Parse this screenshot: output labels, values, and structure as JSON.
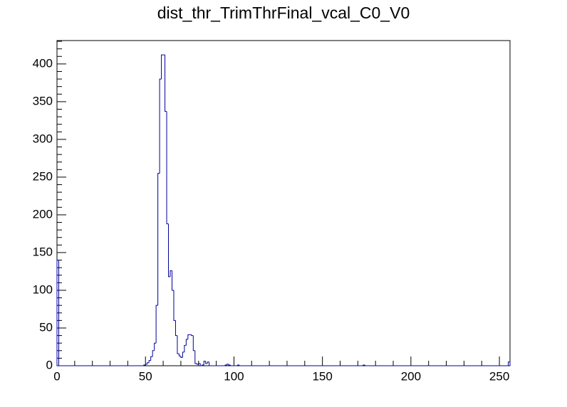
{
  "chart_data": {
    "type": "histogram",
    "title": "dist_thr_TrimThrFinal_vcal_C0_V0",
    "color": "#000099",
    "bins": [
      0,
      1,
      2,
      3,
      4,
      5,
      6,
      7,
      8,
      9,
      10,
      11,
      12,
      13,
      14,
      15,
      16,
      17,
      18,
      19,
      20,
      21,
      22,
      23,
      24,
      25,
      26,
      27,
      28,
      29,
      30,
      31,
      32,
      33,
      34,
      35,
      36,
      37,
      38,
      39,
      40,
      41,
      42,
      43,
      44,
      45,
      46,
      47,
      48,
      49,
      50,
      51,
      52,
      53,
      54,
      55,
      56,
      57,
      58,
      59,
      60,
      61,
      62,
      63,
      64,
      65,
      66,
      67,
      68,
      69,
      70,
      71,
      72,
      73,
      74,
      75,
      76,
      77,
      78,
      79,
      80,
      81,
      82,
      83,
      84,
      85,
      86,
      87,
      88,
      89,
      90,
      91,
      92,
      93,
      94,
      95,
      96,
      97,
      98,
      99,
      100,
      101,
      102,
      103,
      104,
      105,
      106,
      107,
      108,
      109,
      110,
      111,
      112,
      113,
      114,
      115,
      116,
      117,
      118,
      119,
      120,
      121,
      122,
      123,
      124,
      125,
      126,
      127,
      128,
      129,
      130,
      131,
      132,
      133,
      134,
      135,
      136,
      137,
      138,
      139,
      140,
      141,
      142,
      143,
      144,
      145,
      146,
      147,
      148,
      149,
      150,
      151,
      152,
      153,
      154,
      155,
      156,
      157,
      158,
      159,
      160,
      161,
      162,
      163,
      164,
      165,
      166,
      167,
      168,
      169,
      170,
      171,
      172,
      173,
      174,
      175,
      176,
      177,
      178,
      179,
      180,
      181,
      182,
      183,
      184,
      185,
      186,
      187,
      188,
      189,
      190,
      191,
      192,
      193,
      194,
      195,
      196,
      197,
      198,
      199,
      200,
      201,
      202,
      203,
      204,
      205,
      206,
      207,
      208,
      209,
      210,
      211,
      212,
      213,
      214,
      215,
      216,
      217,
      218,
      219,
      220,
      221,
      222,
      223,
      224,
      225,
      226,
      227,
      228,
      229,
      230,
      231,
      232,
      233,
      234,
      235,
      236,
      237,
      238,
      239,
      240,
      241,
      242,
      243,
      244,
      245,
      246,
      247,
      248,
      249,
      250,
      251,
      252,
      253,
      254,
      255,
      256
    ],
    "values": [
      140,
      0,
      0,
      0,
      0,
      0,
      0,
      0,
      0,
      0,
      0,
      0,
      0,
      0,
      0,
      0,
      0,
      0,
      0,
      0,
      0,
      0,
      0,
      0,
      0,
      0,
      0,
      0,
      0,
      0,
      0,
      0,
      0,
      0,
      0,
      0,
      0,
      0,
      0,
      0,
      0,
      0,
      0,
      0,
      0,
      0,
      0,
      0,
      0,
      1,
      2,
      4,
      7,
      12,
      20,
      30,
      80,
      255,
      380,
      412,
      412,
      337,
      188,
      118,
      126,
      100,
      60,
      40,
      16,
      13,
      11,
      18,
      27,
      35,
      41,
      41,
      40,
      20,
      3,
      2,
      3,
      0,
      1,
      6,
      3,
      5,
      0,
      0,
      0,
      0,
      0,
      0,
      0,
      0,
      0,
      1,
      2,
      1,
      0,
      0,
      0,
      0,
      1,
      0,
      0,
      0,
      0,
      0,
      0,
      0,
      0,
      0,
      0,
      0,
      0,
      0,
      0,
      0,
      0,
      0,
      0,
      0,
      0,
      0,
      0,
      0,
      0,
      0,
      0,
      0,
      0,
      0,
      0,
      0,
      0,
      0,
      0,
      0,
      0,
      0,
      0,
      0,
      0,
      0,
      0,
      0,
      0,
      0,
      0,
      0,
      0,
      0,
      0,
      0,
      0,
      0,
      0,
      0,
      0,
      0,
      0,
      0,
      0,
      0,
      0,
      0,
      0,
      0,
      0,
      0,
      0,
      0,
      0,
      1,
      0,
      0,
      0,
      0,
      0,
      0,
      0,
      0,
      0,
      0,
      0,
      0,
      0,
      0,
      0,
      0,
      0,
      0,
      0,
      0,
      0,
      0,
      0,
      0,
      0,
      0,
      0,
      0,
      0,
      0,
      0,
      0,
      0,
      0,
      0,
      0,
      0,
      0,
      0,
      0,
      0,
      0,
      0,
      0,
      0,
      0,
      0,
      0,
      0,
      0,
      0,
      0,
      0,
      0,
      0,
      0,
      0,
      0,
      0,
      0,
      0,
      0,
      0,
      0,
      0,
      0,
      0,
      0,
      0,
      0,
      0,
      0,
      0,
      0,
      0,
      0,
      0,
      0,
      0,
      0,
      0,
      5
    ],
    "xlim": [
      0,
      256
    ],
    "xticks": [
      0,
      50,
      100,
      150,
      200,
      250
    ],
    "xminorticks": [
      10,
      20,
      30,
      40,
      60,
      70,
      80,
      90,
      110,
      120,
      130,
      140,
      160,
      170,
      180,
      190,
      210,
      220,
      230,
      240
    ],
    "ylim": [
      0,
      431
    ],
    "yticks": [
      0,
      50,
      100,
      150,
      200,
      250,
      300,
      350,
      400
    ],
    "yminorticks": [
      10,
      20,
      30,
      40,
      60,
      70,
      80,
      90,
      110,
      120,
      130,
      140,
      160,
      170,
      180,
      190,
      210,
      220,
      230,
      240,
      260,
      270,
      280,
      290,
      310,
      320,
      330,
      340,
      360,
      370,
      380,
      390,
      410,
      420,
      430
    ]
  }
}
